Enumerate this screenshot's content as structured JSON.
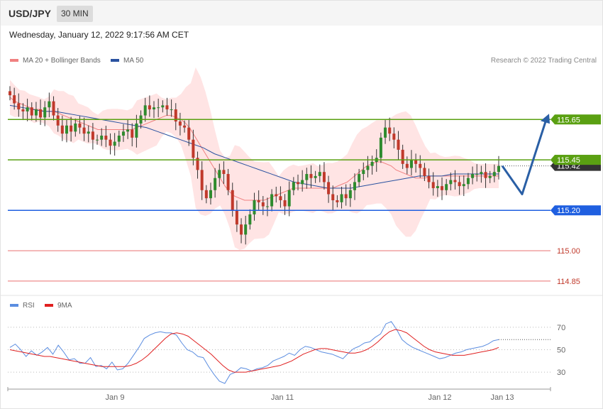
{
  "header": {
    "pair": "USD/JPY",
    "timeframe": "30 MIN"
  },
  "datetime": "Wednesday, January 12, 2022 9:17:56 AM CET",
  "legend": {
    "ma20_label": "MA 20 + Bollinger Bands",
    "ma50_label": "MA 50",
    "credit": "Research © 2022 Trading Central"
  },
  "rsi_legend": {
    "rsi_label": "RSI",
    "ma_label": "9MA"
  },
  "colors": {
    "ma20": "#f08080",
    "ma50": "#2a52a0",
    "bands_fill": "#ffe1e1",
    "up": "#2e8b2e",
    "down": "#c0392b",
    "green_level": "#5aa012",
    "blue_level": "#1f5fe0",
    "red_level": "#f0a0a0",
    "arrow": "#2a5fa5",
    "rsi": "#5b8de0",
    "rsi_ma": "#e02020"
  },
  "chart_data": [
    {
      "type": "candlestick",
      "price_axis": {
        "ylim": [
          114.8,
          115.89
        ]
      },
      "x_ticks": [
        "Jan 9",
        "Jan 11",
        "Jan 12",
        "Jan 13"
      ],
      "current_price": "115.42",
      "levels": [
        {
          "value": 115.65,
          "label": "115.65",
          "kind": "resistance"
        },
        {
          "value": 115.45,
          "label": "115.45",
          "kind": "resistance"
        },
        {
          "value": 115.2,
          "label": "115.20",
          "kind": "pivot"
        },
        {
          "value": 115.0,
          "label": "115.00",
          "kind": "support"
        },
        {
          "value": 114.85,
          "label": "114.85",
          "kind": "support"
        }
      ],
      "scenario_path": [
        115.42,
        115.28,
        115.65
      ],
      "close_series": [
        115.77,
        115.73,
        115.7,
        115.69,
        115.71,
        115.67,
        115.7,
        115.66,
        115.71,
        115.74,
        115.67,
        115.62,
        115.58,
        115.62,
        115.59,
        115.63,
        115.61,
        115.58,
        115.59,
        115.55,
        115.55,
        115.57,
        115.55,
        115.52,
        115.54,
        115.57,
        115.59,
        115.6,
        115.56,
        115.63,
        115.67,
        115.72,
        115.7,
        115.71,
        115.71,
        115.72,
        115.7,
        115.7,
        115.64,
        115.62,
        115.61,
        115.55,
        115.46,
        115.4,
        115.3,
        115.26,
        115.3,
        115.36,
        115.4,
        115.38,
        115.3,
        115.2,
        115.13,
        115.08,
        115.13,
        115.18,
        115.25,
        115.24,
        115.22,
        115.22,
        115.28,
        115.27,
        115.25,
        115.22,
        115.3,
        115.34,
        115.33,
        115.35,
        115.38,
        115.36,
        115.37,
        115.39,
        115.34,
        115.28,
        115.25,
        115.24,
        115.28,
        115.26,
        115.3,
        115.34,
        115.38,
        115.4,
        115.42,
        115.44,
        115.46,
        115.56,
        115.61,
        115.58,
        115.55,
        115.5,
        115.43,
        115.41,
        115.45,
        115.43,
        115.41,
        115.37,
        115.34,
        115.31,
        115.32,
        115.3,
        115.33,
        115.35,
        115.34,
        115.32,
        115.33,
        115.36,
        115.38,
        115.38,
        115.39,
        115.36,
        115.37,
        115.39,
        115.42
      ],
      "ma20_series": [
        115.76,
        115.74,
        115.73,
        115.72,
        115.71,
        115.7,
        115.7,
        115.69,
        115.69,
        115.69,
        115.68,
        115.67,
        115.66,
        115.65,
        115.64,
        115.63,
        115.62,
        115.61,
        115.6,
        115.6,
        115.6,
        115.6,
        115.6,
        115.6,
        115.6,
        115.6,
        115.61,
        115.62,
        115.63,
        115.64,
        115.65,
        115.66,
        115.67,
        115.67,
        115.66,
        115.65,
        115.63,
        115.6,
        115.56,
        115.52,
        115.48,
        115.44,
        115.4,
        115.36,
        115.32,
        115.29,
        115.27,
        115.26,
        115.25,
        115.25,
        115.25,
        115.25,
        115.25,
        115.26,
        115.27,
        115.28,
        115.29,
        115.3,
        115.31,
        115.31,
        115.31,
        115.31,
        115.31,
        115.31,
        115.31,
        115.31,
        115.31,
        115.32,
        115.33,
        115.34,
        115.36,
        115.38,
        115.4,
        115.42,
        115.43,
        115.44,
        115.44,
        115.43,
        115.42,
        115.4,
        115.39,
        115.38,
        115.37,
        115.36,
        115.36,
        115.36,
        115.37,
        115.37,
        115.37,
        115.37,
        115.37,
        115.37,
        115.37,
        115.37,
        115.37,
        115.37,
        115.37,
        115.37,
        115.37,
        115.37,
        115.37
      ],
      "ma50_series": [
        115.72,
        115.71,
        115.7,
        115.69,
        115.69,
        115.68,
        115.67,
        115.66,
        115.65,
        115.64,
        115.63,
        115.62,
        115.61,
        115.59,
        115.57,
        115.55,
        115.53,
        115.51,
        115.48,
        115.46,
        115.44,
        115.42,
        115.4,
        115.38,
        115.36,
        115.34,
        115.33,
        115.32,
        115.31,
        115.31,
        115.31,
        115.32,
        115.33,
        115.34,
        115.35,
        115.36,
        115.37,
        115.37,
        115.37,
        115.38,
        115.38,
        115.38,
        115.38,
        115.38
      ]
    },
    {
      "type": "line",
      "name": "RSI",
      "x_ticks": [
        "Jan 9",
        "Jan 11",
        "Jan 12",
        "Jan 13"
      ],
      "y_ticks": [
        "70",
        "50",
        "30"
      ],
      "ylim": [
        20,
        80
      ],
      "rsi_series": [
        52,
        55,
        50,
        44,
        49,
        45,
        48,
        52,
        46,
        54,
        48,
        41,
        42,
        38,
        38,
        43,
        35,
        36,
        33,
        39,
        32,
        33,
        38,
        45,
        52,
        60,
        63,
        65,
        66,
        65,
        65,
        63,
        56,
        50,
        48,
        44,
        43,
        35,
        28,
        22,
        20,
        28,
        30,
        34,
        33,
        31,
        33,
        34,
        36,
        40,
        42,
        44,
        47,
        45,
        50,
        53,
        52,
        50,
        48,
        47,
        46,
        44,
        42,
        47,
        51,
        53,
        56,
        57,
        61,
        64,
        73,
        75,
        68,
        59,
        55,
        52,
        50,
        48,
        46,
        44,
        42,
        43,
        45,
        47,
        48,
        50,
        51,
        52,
        53,
        55,
        58,
        59
      ],
      "rsi_ma_series": [
        50,
        49,
        48,
        47,
        46,
        45,
        44,
        44,
        43,
        42,
        41,
        40,
        39,
        38,
        37,
        36,
        35,
        35,
        35,
        35,
        35,
        36,
        38,
        41,
        45,
        50,
        55,
        60,
        64,
        65,
        64,
        62,
        58,
        54,
        50,
        46,
        41,
        36,
        32,
        30,
        30,
        30,
        31,
        32,
        33,
        34,
        35,
        36,
        38,
        40,
        43,
        46,
        48,
        50,
        51,
        51,
        50,
        49,
        48,
        47,
        47,
        48,
        50,
        53,
        57,
        62,
        66,
        68,
        67,
        65,
        61,
        57,
        53,
        50,
        48,
        47,
        46,
        45,
        45,
        45,
        46,
        47,
        48,
        49,
        50,
        52
      ]
    }
  ]
}
